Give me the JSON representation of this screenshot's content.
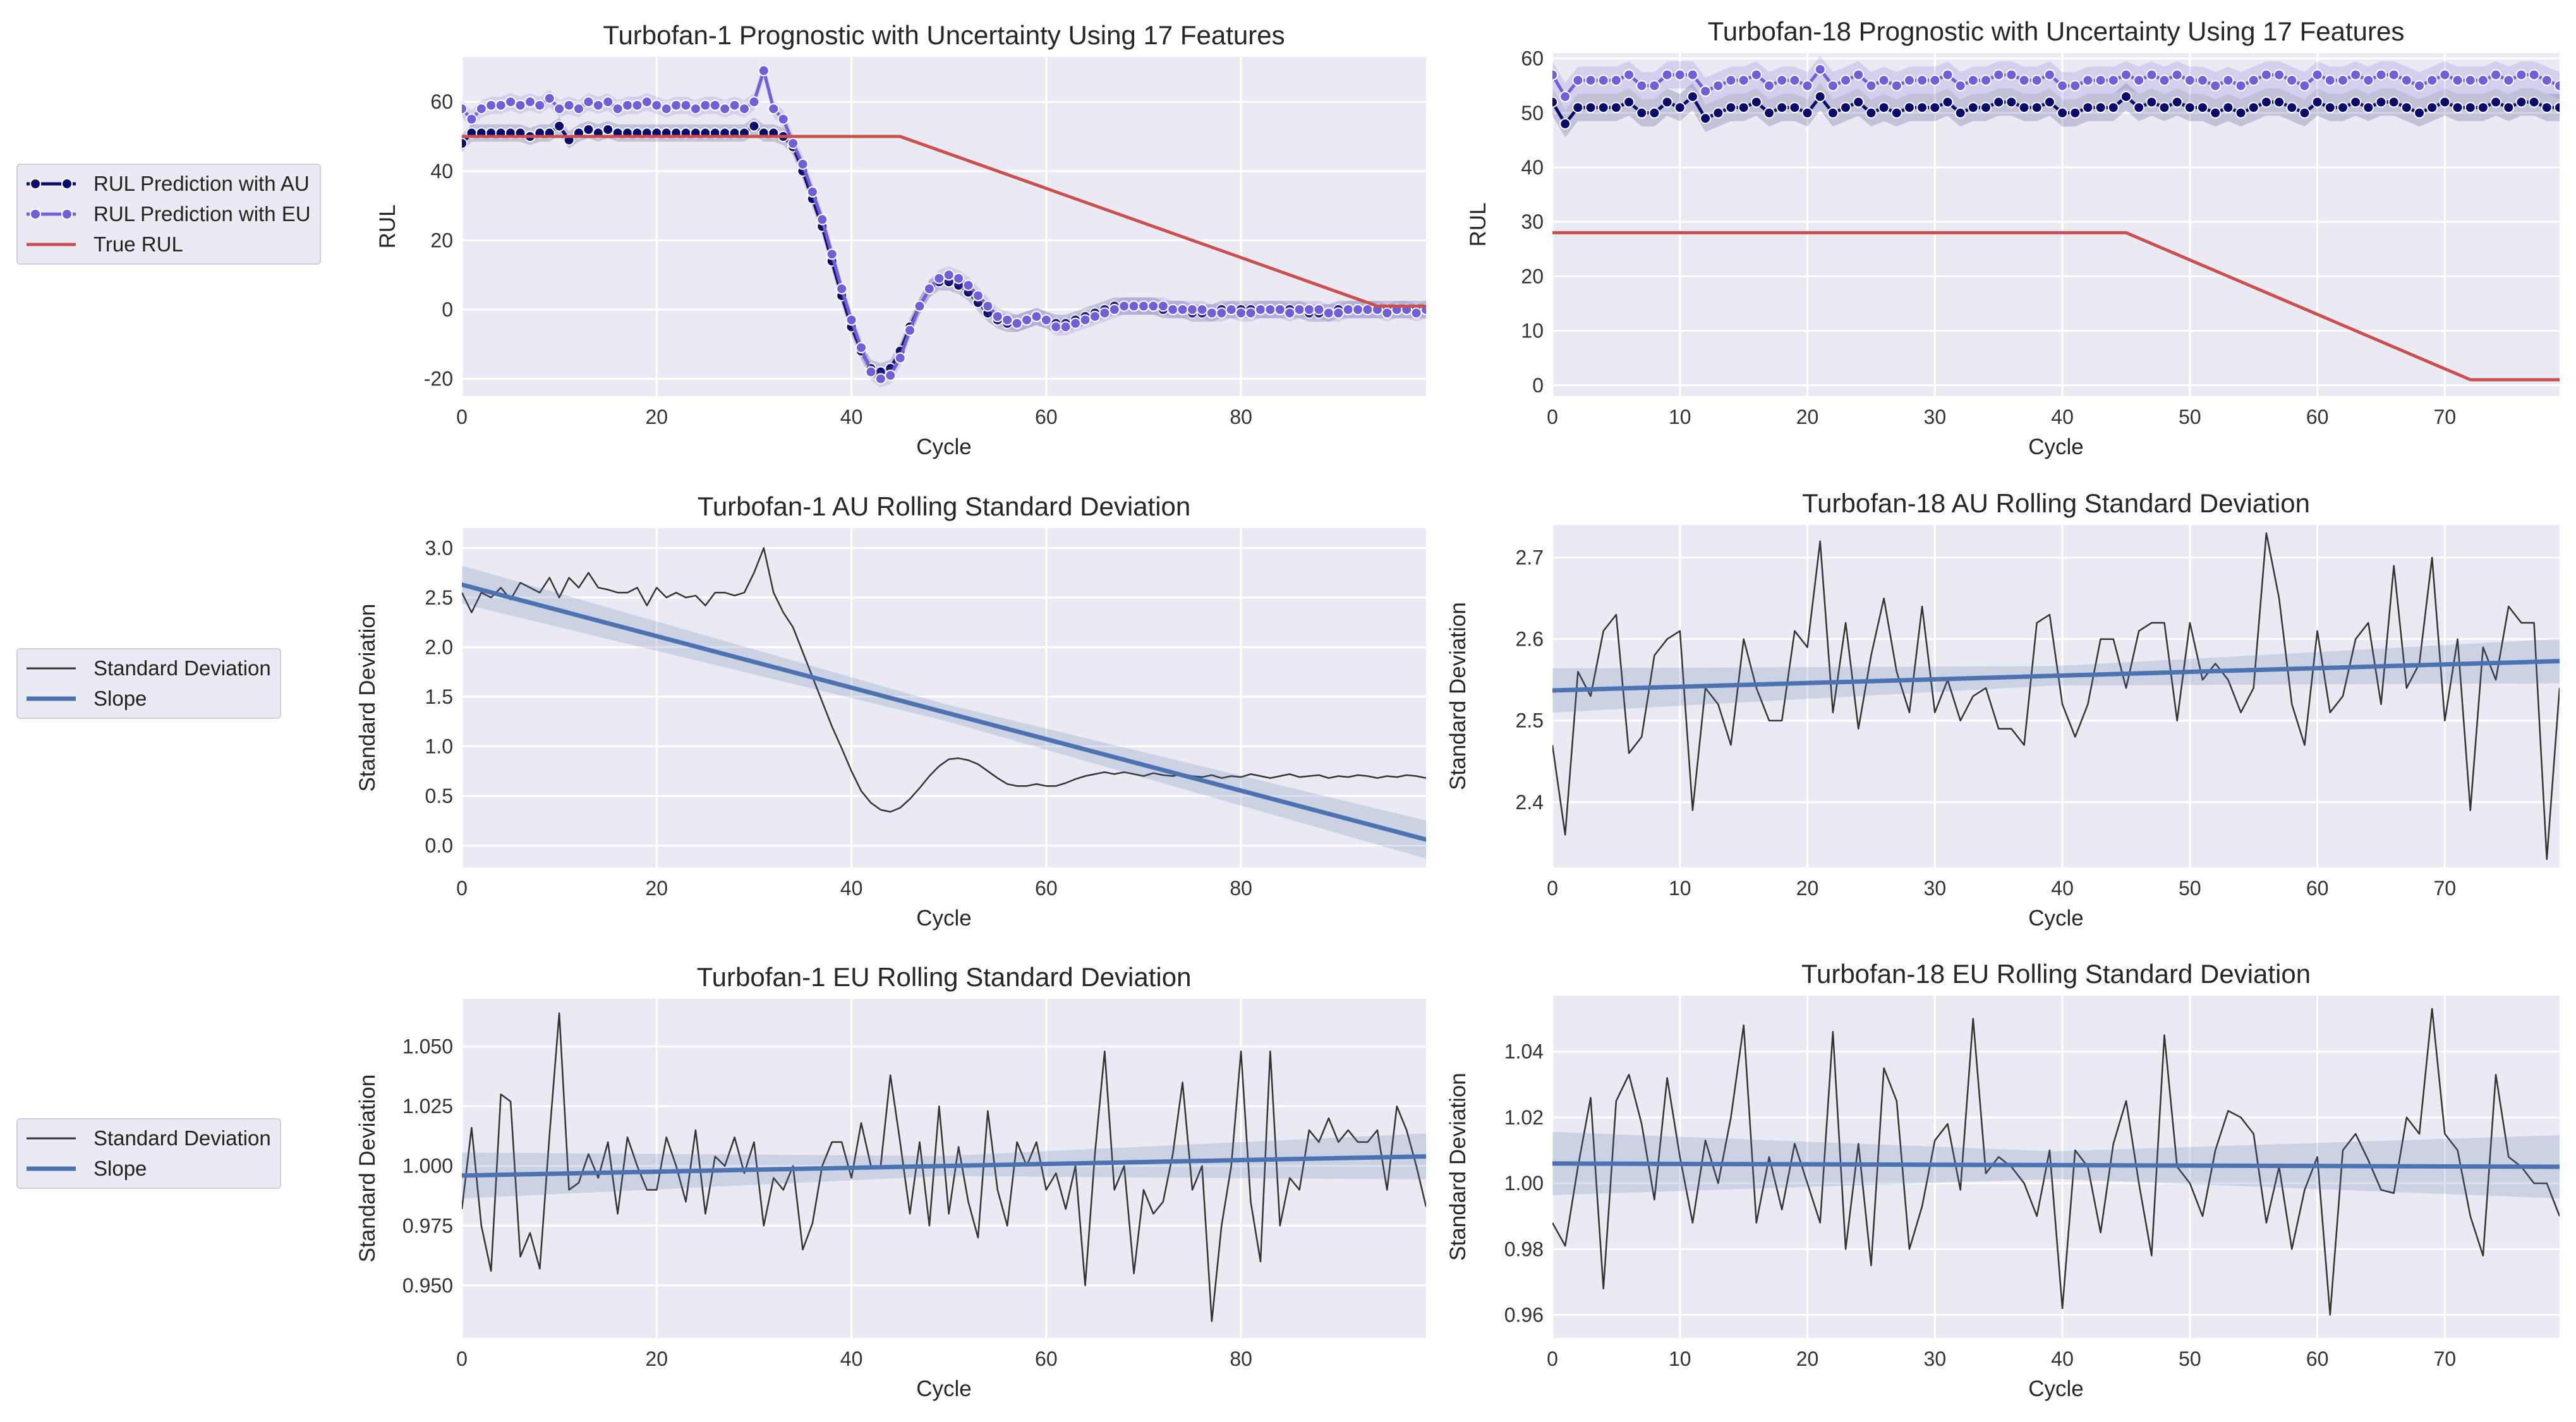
{
  "figure": {
    "legend_rul": {
      "items": [
        {
          "label": "RUL Prediction with AU",
          "color": "#0b0b6b",
          "marker": "filled-circle"
        },
        {
          "label": "RUL Prediction with EU",
          "color": "#7060d8",
          "marker": "filled-circle"
        },
        {
          "label": "True RUL",
          "color": "#cc4f4f",
          "marker": "none"
        }
      ]
    },
    "legend_std_au": {
      "items": [
        {
          "label": "Standard Deviation",
          "color": "#333333",
          "marker": "none"
        },
        {
          "label": "Slope",
          "color": "#4c72b0",
          "marker": "none"
        }
      ]
    },
    "legend_std_eu": {
      "items": [
        {
          "label": "Standard Deviation",
          "color": "#333333",
          "marker": "none"
        },
        {
          "label": "Slope",
          "color": "#4c72b0",
          "marker": "none"
        }
      ]
    }
  },
  "chart_data": [
    {
      "id": "t1-prognostic",
      "type": "line",
      "title": "Turbofan-1 Prognostic with Uncertainty Using 17 Features",
      "xlabel": "Cycle",
      "ylabel": "RUL",
      "xlim": [
        0,
        99
      ],
      "ylim": [
        -25,
        73
      ],
      "xticks": [
        0,
        20,
        40,
        60,
        80
      ],
      "yticks": [
        -20,
        0,
        20,
        40,
        60
      ],
      "series": [
        {
          "name": "RUL Prediction with AU",
          "kind": "markers-line",
          "color": "#0b0b6b",
          "values": [
            48,
            51,
            51,
            51,
            51,
            51,
            51,
            50,
            51,
            51,
            53,
            49,
            51,
            52,
            51,
            52,
            51,
            51,
            51,
            51,
            51,
            51,
            51,
            51,
            51,
            51,
            51,
            51,
            51,
            51,
            53,
            51,
            51,
            50,
            47,
            40,
            32,
            24,
            14,
            4,
            -5,
            -12,
            -17,
            -18,
            -17,
            -12,
            -5,
            1,
            6,
            8,
            8,
            7,
            5,
            2,
            -1,
            -3,
            -4,
            -4,
            -3,
            -2,
            -3,
            -4,
            -4,
            -3,
            -2,
            -1,
            0,
            1,
            1,
            1,
            1,
            1,
            0,
            0,
            0,
            -1,
            -1,
            -1,
            0,
            0,
            0,
            0,
            0,
            0,
            0,
            0,
            0,
            -1,
            -1,
            -1,
            0,
            0,
            0,
            0,
            0,
            0,
            0,
            0,
            0,
            0
          ]
        },
        {
          "name": "RUL Prediction with EU",
          "kind": "markers-line",
          "color": "#7060d8",
          "values": [
            58,
            55,
            58,
            59,
            59,
            60,
            59,
            60,
            59,
            61,
            58,
            59,
            58,
            60,
            59,
            60,
            58,
            59,
            59,
            60,
            59,
            58,
            59,
            59,
            58,
            59,
            59,
            58,
            59,
            58,
            60,
            69,
            58,
            55,
            48,
            42,
            34,
            26,
            16,
            6,
            -3,
            -11,
            -18,
            -20,
            -19,
            -14,
            -6,
            1,
            6,
            9,
            10,
            9,
            7,
            4,
            1,
            -2,
            -3,
            -4,
            -3,
            -2,
            -3,
            -5,
            -5,
            -4,
            -3,
            -2,
            -1,
            0,
            1,
            1,
            1,
            1,
            1,
            0,
            0,
            0,
            0,
            -1,
            -1,
            0,
            -1,
            -1,
            0,
            0,
            0,
            -1,
            0,
            0,
            0,
            -1,
            -1,
            0,
            0,
            0,
            0,
            -1,
            0,
            0,
            -1,
            0
          ]
        },
        {
          "name": "True RUL",
          "kind": "line",
          "color": "#cc4f4f",
          "x": [
            0,
            45,
            94,
            99
          ],
          "y": [
            50,
            50,
            1,
            1
          ]
        }
      ]
    },
    {
      "id": "t18-prognostic",
      "type": "line",
      "title": "Turbofan-18 Prognostic with Uncertainty Using 17 Features",
      "xlabel": "Cycle",
      "ylabel": "RUL",
      "xlim": [
        0,
        79
      ],
      "ylim": [
        -2,
        61
      ],
      "xticks": [
        0,
        10,
        20,
        30,
        40,
        50,
        60,
        70
      ],
      "yticks": [
        0,
        10,
        20,
        30,
        40,
        50,
        60
      ],
      "series": [
        {
          "name": "RUL Prediction with AU",
          "kind": "markers-line",
          "color": "#0b0b6b",
          "values": [
            52,
            48,
            51,
            51,
            51,
            51,
            52,
            50,
            50,
            52,
            51,
            53,
            49,
            50,
            51,
            51,
            52,
            50,
            51,
            51,
            50,
            53,
            50,
            51,
            52,
            50,
            51,
            50,
            51,
            51,
            51,
            52,
            50,
            51,
            51,
            52,
            52,
            51,
            51,
            52,
            50,
            50,
            51,
            51,
            51,
            53,
            51,
            52,
            51,
            52,
            51,
            51,
            50,
            51,
            50,
            51,
            52,
            52,
            51,
            50,
            52,
            51,
            51,
            52,
            51,
            52,
            52,
            51,
            50,
            51,
            52,
            51,
            51,
            51,
            52,
            51,
            52,
            52,
            51,
            51
          ]
        },
        {
          "name": "RUL Prediction with EU",
          "kind": "markers-line",
          "color": "#7060d8",
          "values": [
            57,
            53,
            56,
            56,
            56,
            56,
            57,
            55,
            55,
            57,
            57,
            57,
            54,
            55,
            56,
            56,
            57,
            55,
            56,
            56,
            55,
            58,
            55,
            56,
            57,
            55,
            56,
            55,
            56,
            56,
            56,
            57,
            55,
            56,
            56,
            57,
            57,
            56,
            56,
            57,
            55,
            55,
            56,
            56,
            56,
            57,
            56,
            57,
            56,
            57,
            56,
            56,
            55,
            56,
            55,
            56,
            57,
            57,
            56,
            55,
            57,
            56,
            56,
            57,
            56,
            57,
            57,
            56,
            55,
            56,
            57,
            56,
            56,
            56,
            57,
            56,
            57,
            57,
            56,
            55
          ]
        },
        {
          "name": "True RUL",
          "kind": "line",
          "color": "#cc4f4f",
          "x": [
            0,
            45,
            72,
            79
          ],
          "y": [
            28,
            28,
            1,
            1
          ]
        }
      ]
    },
    {
      "id": "t1-au-std",
      "type": "line",
      "title": "Turbofan-1 AU Rolling Standard Deviation",
      "xlabel": "Cycle",
      "ylabel": "Standard Deviation",
      "xlim": [
        0,
        99
      ],
      "ylim": [
        -0.22,
        3.2
      ],
      "xticks": [
        0,
        20,
        40,
        60,
        80
      ],
      "yticks": [
        0.0,
        0.5,
        1.0,
        1.5,
        2.0,
        2.5,
        3.0
      ],
      "yticklabels": [
        "0.0",
        "0.5",
        "1.0",
        "1.5",
        "2.0",
        "2.5",
        "3.0"
      ],
      "series": [
        {
          "name": "Standard Deviation",
          "kind": "line",
          "color": "#333333",
          "values": [
            2.55,
            2.35,
            2.55,
            2.5,
            2.6,
            2.48,
            2.65,
            2.6,
            2.55,
            2.7,
            2.5,
            2.7,
            2.6,
            2.75,
            2.6,
            2.58,
            2.55,
            2.55,
            2.6,
            2.42,
            2.6,
            2.5,
            2.55,
            2.5,
            2.52,
            2.42,
            2.55,
            2.55,
            2.52,
            2.55,
            2.75,
            3.0,
            2.55,
            2.35,
            2.2,
            1.95,
            1.7,
            1.45,
            1.2,
            0.98,
            0.75,
            0.55,
            0.43,
            0.36,
            0.34,
            0.38,
            0.47,
            0.58,
            0.7,
            0.8,
            0.87,
            0.88,
            0.86,
            0.82,
            0.75,
            0.68,
            0.62,
            0.6,
            0.6,
            0.62,
            0.6,
            0.6,
            0.63,
            0.67,
            0.7,
            0.72,
            0.74,
            0.72,
            0.74,
            0.72,
            0.7,
            0.73,
            0.71,
            0.7,
            0.72,
            0.7,
            0.69,
            0.71,
            0.68,
            0.7,
            0.69,
            0.72,
            0.7,
            0.68,
            0.7,
            0.72,
            0.69,
            0.7,
            0.71,
            0.68,
            0.7,
            0.69,
            0.71,
            0.7,
            0.68,
            0.7,
            0.69,
            0.71,
            0.7,
            0.68
          ]
        },
        {
          "name": "Slope",
          "kind": "regression",
          "color": "#4c72b0",
          "x": [
            0,
            99
          ],
          "y": [
            2.63,
            0.06
          ],
          "ci": 0.12
        }
      ]
    },
    {
      "id": "t18-au-std",
      "type": "line",
      "title": "Turbofan-18 AU Rolling Standard Deviation",
      "xlabel": "Cycle",
      "ylabel": "Standard Deviation",
      "xlim": [
        0,
        79
      ],
      "ylim": [
        2.32,
        2.74
      ],
      "xticks": [
        0,
        10,
        20,
        30,
        40,
        50,
        60,
        70
      ],
      "yticks": [
        2.4,
        2.5,
        2.6,
        2.7
      ],
      "yticklabels": [
        "2.4",
        "2.5",
        "2.6",
        "2.7"
      ],
      "series": [
        {
          "name": "Standard Deviation",
          "kind": "line",
          "color": "#333333",
          "values": [
            2.47,
            2.36,
            2.56,
            2.53,
            2.61,
            2.63,
            2.46,
            2.48,
            2.58,
            2.6,
            2.61,
            2.39,
            2.54,
            2.52,
            2.47,
            2.6,
            2.54,
            2.5,
            2.5,
            2.61,
            2.59,
            2.72,
            2.51,
            2.62,
            2.49,
            2.58,
            2.65,
            2.56,
            2.51,
            2.64,
            2.51,
            2.55,
            2.5,
            2.53,
            2.54,
            2.49,
            2.49,
            2.47,
            2.62,
            2.63,
            2.52,
            2.48,
            2.52,
            2.6,
            2.6,
            2.54,
            2.61,
            2.62,
            2.62,
            2.5,
            2.62,
            2.55,
            2.57,
            2.55,
            2.51,
            2.54,
            2.73,
            2.65,
            2.52,
            2.47,
            2.61,
            2.51,
            2.53,
            2.6,
            2.62,
            2.52,
            2.69,
            2.54,
            2.57,
            2.7,
            2.5,
            2.6,
            2.39,
            2.59,
            2.55,
            2.64,
            2.62,
            2.62,
            2.33,
            2.54
          ]
        },
        {
          "name": "Slope",
          "kind": "regression",
          "color": "#4c72b0",
          "x": [
            0,
            79
          ],
          "y": [
            2.537,
            2.573
          ],
          "ci": 0.017
        }
      ]
    },
    {
      "id": "t1-eu-std",
      "type": "line",
      "title": "Turbofan-1 EU Rolling Standard Deviation",
      "xlabel": "Cycle",
      "ylabel": "Standard Deviation",
      "xlim": [
        0,
        99
      ],
      "ylim": [
        0.928,
        1.07
      ],
      "xticks": [
        0,
        20,
        40,
        60,
        80
      ],
      "yticks": [
        0.95,
        0.975,
        1.0,
        1.025,
        1.05
      ],
      "yticklabels": [
        "0.950",
        "0.975",
        "1.000",
        "1.025",
        "1.050"
      ],
      "series": [
        {
          "name": "Standard Deviation",
          "kind": "line",
          "color": "#333333",
          "values": [
            0.982,
            1.016,
            0.975,
            0.956,
            1.03,
            1.027,
            0.962,
            0.972,
            0.957,
            1.013,
            1.064,
            0.99,
            0.993,
            1.005,
            0.995,
            1.01,
            0.98,
            1.012,
            1.0,
            0.99,
            0.99,
            1.012,
            1.0,
            0.985,
            1.015,
            0.98,
            1.004,
            1.0,
            1.012,
            0.997,
            1.01,
            0.975,
            0.995,
            0.99,
            1.0,
            0.965,
            0.976,
            1.0,
            1.01,
            1.01,
            0.995,
            1.018,
            1.0,
            1.0,
            1.038,
            1.01,
            0.98,
            1.01,
            0.975,
            1.025,
            0.98,
            1.008,
            0.985,
            0.97,
            1.023,
            0.99,
            0.975,
            1.01,
            1.0,
            1.01,
            0.99,
            0.997,
            0.982,
            1.0,
            0.95,
            1.005,
            1.048,
            0.99,
            1.0,
            0.955,
            0.99,
            0.98,
            0.985,
            1.005,
            1.035,
            0.99,
            1.0,
            0.935,
            0.975,
            1.0,
            1.048,
            0.985,
            0.96,
            1.048,
            0.975,
            0.995,
            0.99,
            1.015,
            1.01,
            1.02,
            1.01,
            1.015,
            1.01,
            1.01,
            1.015,
            0.99,
            1.025,
            1.015,
            1.0,
            0.983
          ]
        },
        {
          "name": "Slope",
          "kind": "regression",
          "color": "#4c72b0",
          "x": [
            0,
            99
          ],
          "y": [
            0.996,
            1.004
          ],
          "ci": 0.006
        }
      ]
    },
    {
      "id": "t18-eu-std",
      "type": "line",
      "title": "Turbofan-18 EU Rolling Standard Deviation",
      "xlabel": "Cycle",
      "ylabel": "Standard Deviation",
      "xlim": [
        0,
        79
      ],
      "ylim": [
        0.953,
        1.057
      ],
      "xticks": [
        0,
        10,
        20,
        30,
        40,
        50,
        60,
        70
      ],
      "yticks": [
        0.96,
        0.98,
        1.0,
        1.02,
        1.04
      ],
      "yticklabels": [
        "0.96",
        "0.98",
        "1.00",
        "1.02",
        "1.04"
      ],
      "series": [
        {
          "name": "Standard Deviation",
          "kind": "line",
          "color": "#333333",
          "values": [
            0.988,
            0.981,
            1.005,
            1.026,
            0.968,
            1.025,
            1.033,
            1.018,
            0.995,
            1.032,
            1.008,
            0.988,
            1.013,
            1.0,
            1.02,
            1.048,
            0.988,
            1.008,
            0.992,
            1.012,
            1.0,
            0.988,
            1.046,
            0.98,
            1.012,
            0.975,
            1.035,
            1.025,
            0.98,
            0.993,
            1.013,
            1.018,
            0.998,
            1.05,
            1.003,
            1.008,
            1.005,
            1.0,
            0.99,
            1.01,
            0.962,
            1.01,
            1.005,
            0.985,
            1.012,
            1.025,
            1.0,
            0.978,
            1.045,
            1.005,
            1.0,
            0.99,
            1.01,
            1.022,
            1.02,
            1.015,
            0.988,
            1.005,
            0.98,
            0.998,
            1.008,
            0.96,
            1.01,
            1.015,
            1.007,
            0.998,
            0.997,
            1.02,
            1.015,
            1.053,
            1.015,
            1.01,
            0.99,
            0.978,
            1.033,
            1.008,
            1.005,
            1.0,
            1.0,
            0.99
          ]
        },
        {
          "name": "Slope",
          "kind": "regression",
          "color": "#4c72b0",
          "x": [
            0,
            79
          ],
          "y": [
            1.006,
            1.005
          ],
          "ci": 0.006
        }
      ]
    }
  ]
}
